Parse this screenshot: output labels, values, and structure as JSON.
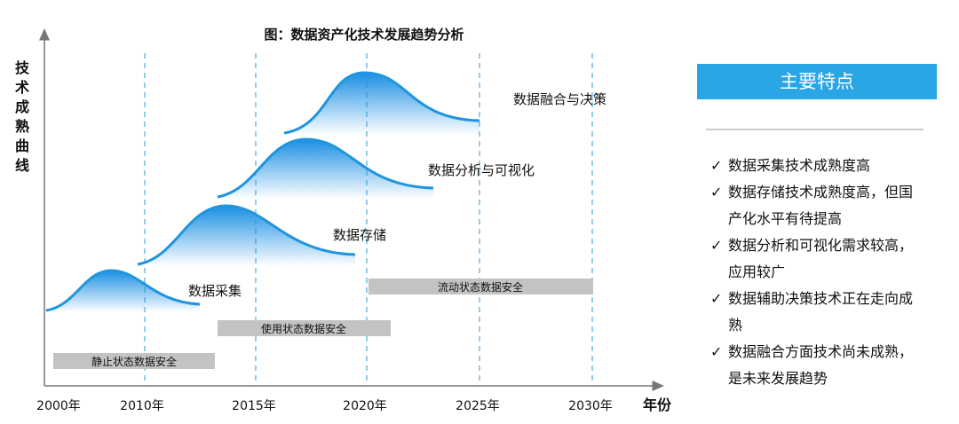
{
  "title": "图：数据资产化技术发展趋势分析",
  "y_axis_label": [
    "技",
    "术",
    "成",
    "熟",
    "曲",
    "线"
  ],
  "x_axis_labels": [
    "2000年",
    "2010年",
    "2015年",
    "2020年",
    "2025年",
    "2030年"
  ],
  "x_axis_label": "年份",
  "curve_labels": [
    "数据采集",
    "数据存储",
    "数据分析与可视化",
    "数据融合与决策"
  ],
  "security_bars": [
    "静止状态数据安全",
    "使用状态数据安全",
    "流动状态数据安全"
  ],
  "panel": {
    "title": "主要特点",
    "items": [
      "数据采集技术成熟度高",
      "数据存储技术成熟度高，但国产化水平有待提高",
      "数据分析和可视化需求较高，应用较广",
      "数据辅助决策技术正在走向成熟",
      "数据融合方面技术尚未成熟，是未来发展趋势"
    ]
  }
}
